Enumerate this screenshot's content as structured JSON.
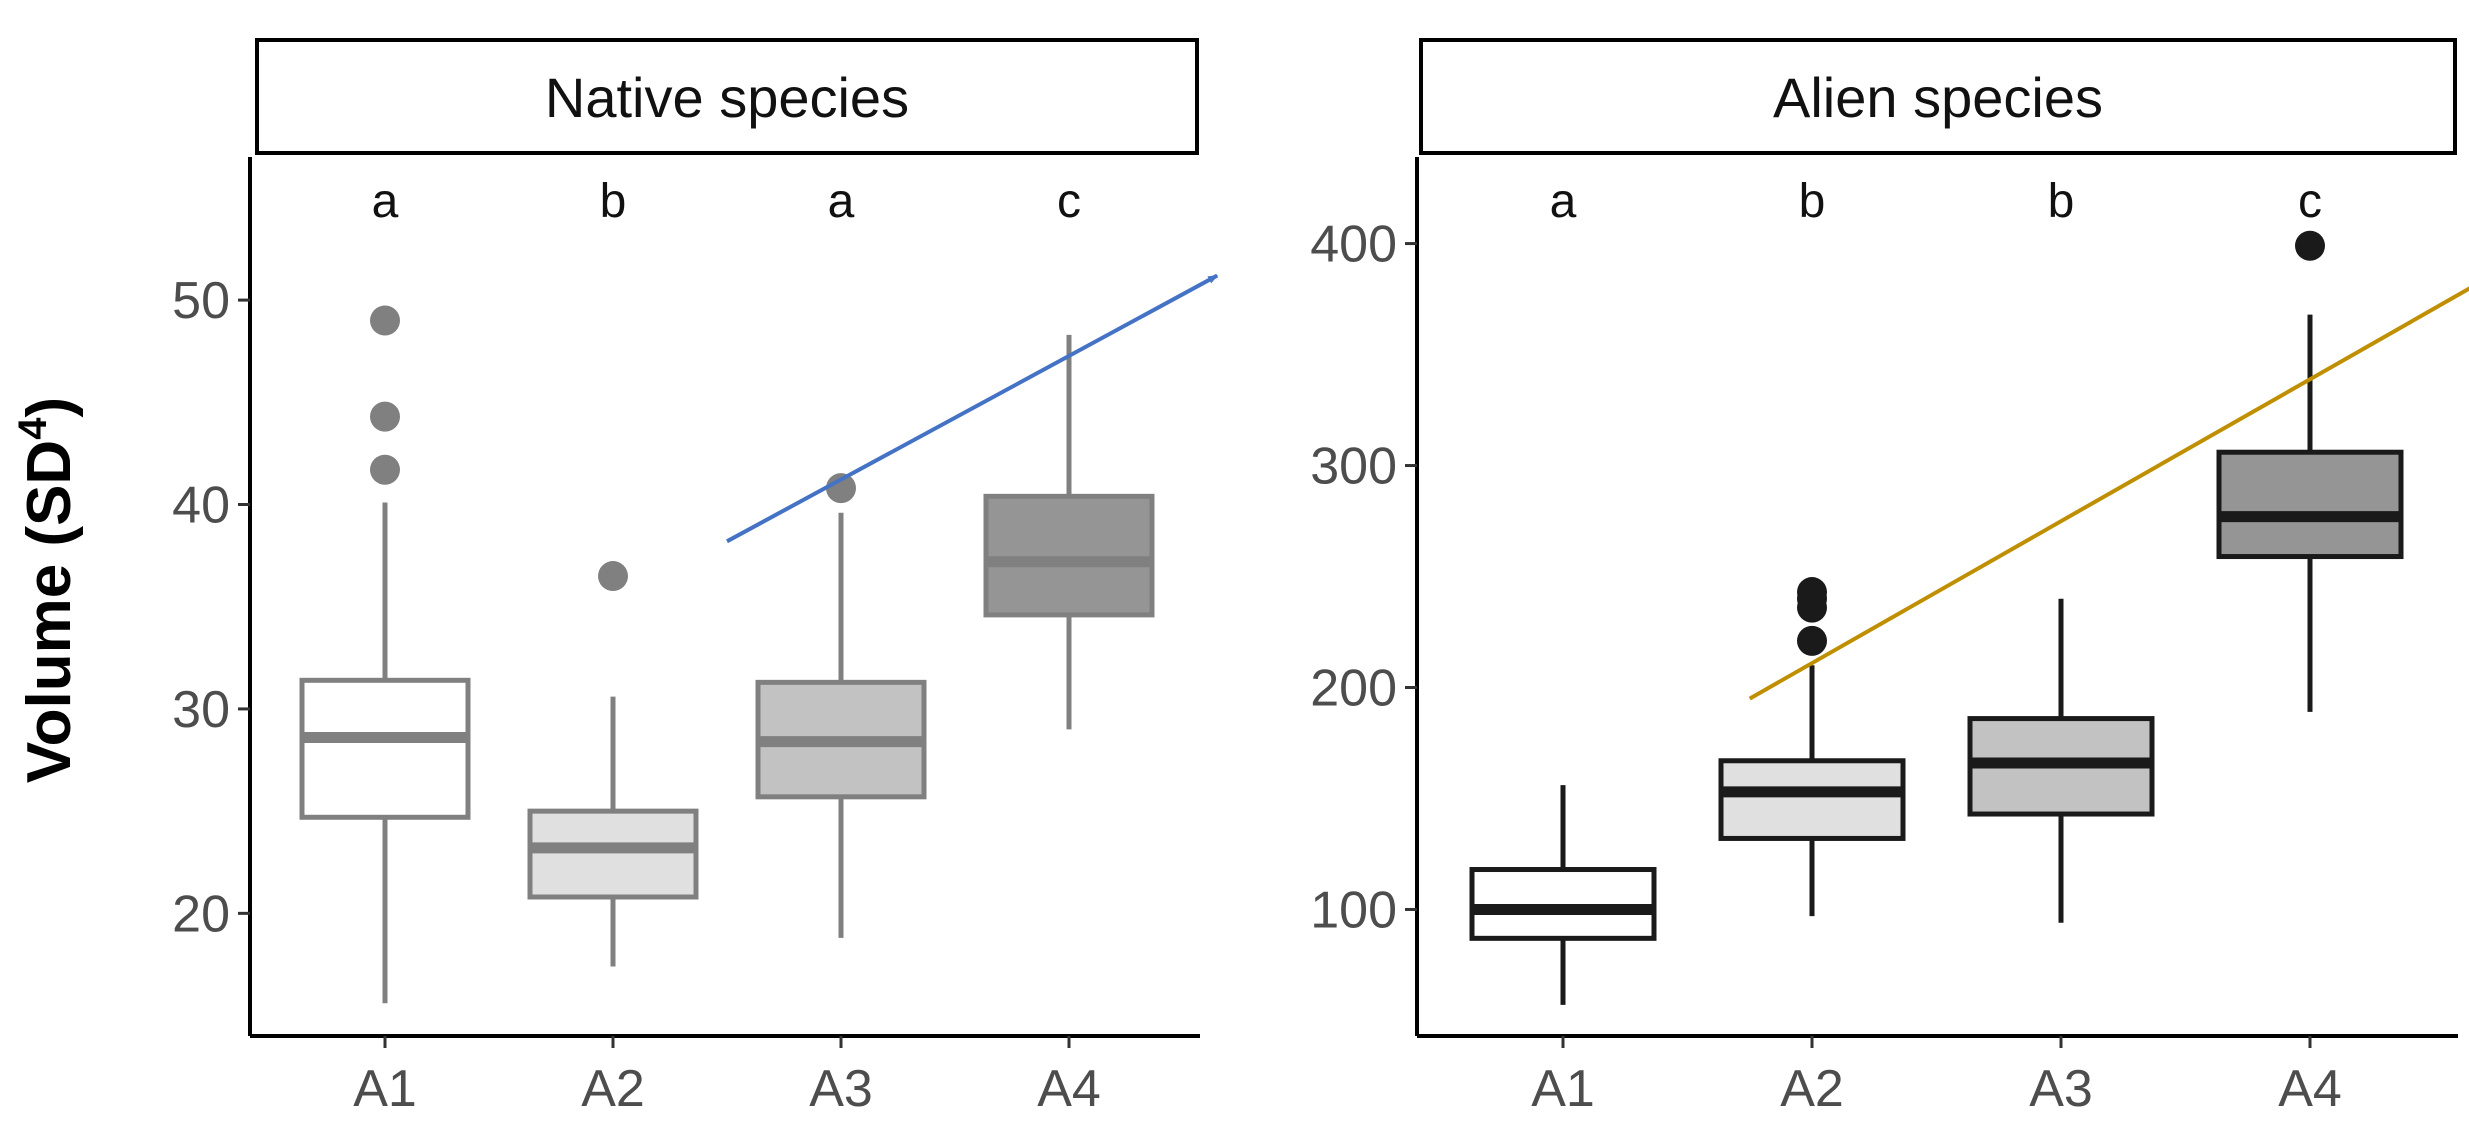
{
  "figure": {
    "ylabel_main": "Volume (SD",
    "ylabel_sup": "4",
    "ylabel_close": ")"
  },
  "chart_data": [
    {
      "type": "boxplot",
      "title": "Native species",
      "categories": [
        "A1",
        "A2",
        "A3",
        "A4"
      ],
      "letters": [
        "a",
        "b",
        "a",
        "c"
      ],
      "ylim": [
        14,
        57
      ],
      "yticks": [
        20,
        30,
        40,
        50
      ],
      "ytick_labels": [
        "20",
        "30",
        "40",
        "50"
      ],
      "grid": false,
      "stroke_color": "#808080",
      "fills": [
        "#ffffff",
        "#e0e0e0",
        "#c2c2c2",
        "#959595"
      ],
      "boxes": [
        {
          "category": "A1",
          "min": 15.6,
          "q1": 24.7,
          "median": 28.6,
          "q3": 31.4,
          "max": 40.1,
          "outliers": [
            41.7,
            44.3,
            49.0
          ]
        },
        {
          "category": "A2",
          "min": 17.4,
          "q1": 20.8,
          "median": 23.2,
          "q3": 25.0,
          "max": 30.6,
          "outliers": [
            36.5
          ]
        },
        {
          "category": "A3",
          "min": 18.8,
          "q1": 25.7,
          "median": 28.4,
          "q3": 31.3,
          "max": 39.6,
          "outliers": [
            40.8
          ]
        },
        {
          "category": "A4",
          "min": 29.0,
          "q1": 34.6,
          "median": 37.2,
          "q3": 40.4,
          "max": 48.3,
          "outliers": []
        }
      ],
      "trend_arrow": {
        "color": "#4472c4",
        "from": {
          "x": 1.5,
          "y": 38.2
        },
        "to": {
          "x": 3.65,
          "y": 51.2
        }
      }
    },
    {
      "type": "boxplot",
      "title": "Alien species",
      "categories": [
        "A1",
        "A2",
        "A3",
        "A4"
      ],
      "letters": [
        "a",
        "b",
        "b",
        "c"
      ],
      "ylim": [
        43,
        439
      ],
      "yticks": [
        100,
        200,
        300,
        400
      ],
      "ytick_labels": [
        "100",
        "200",
        "300",
        "400"
      ],
      "grid": false,
      "stroke_color": "#1a1a1a",
      "fills": [
        "#ffffff",
        "#e0e0e0",
        "#c2c2c2",
        "#959595"
      ],
      "boxes": [
        {
          "category": "A1",
          "min": 57,
          "q1": 87,
          "median": 100,
          "q3": 118,
          "max": 156,
          "outliers": []
        },
        {
          "category": "A2",
          "min": 97,
          "q1": 132,
          "median": 153,
          "q3": 167,
          "max": 210,
          "outliers": [
            221,
            236,
            240,
            243
          ]
        },
        {
          "category": "A3",
          "min": 94,
          "q1": 143,
          "median": 166,
          "q3": 186,
          "max": 240,
          "outliers": []
        },
        {
          "category": "A4",
          "min": 189,
          "q1": 259,
          "median": 277,
          "q3": 306,
          "max": 368,
          "outliers": [
            399
          ]
        }
      ],
      "trend_arrow": {
        "color": "#bf8f00",
        "from": {
          "x": 0.75,
          "y": 195
        },
        "to": {
          "x": 3.8,
          "y": 390
        }
      }
    }
  ]
}
